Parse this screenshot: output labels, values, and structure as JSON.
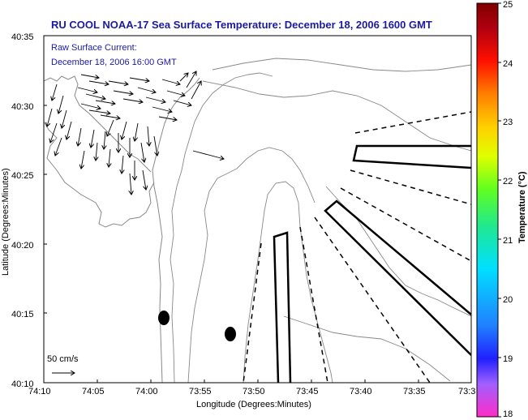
{
  "title": "RU COOL  NOAA-17  Sea Surface Temperature:  December 18, 2006 1600 GMT",
  "annotation": {
    "line1": "Raw Surface Current:",
    "line2": "December 18, 2006 16:00 GMT"
  },
  "scale_label": "50 cm/s",
  "x_axis": {
    "label": "Longitude (Degrees:Minutes)",
    "ticks": [
      "74:10",
      "74:05",
      "74:00",
      "73:55",
      "73:50",
      "73:45",
      "73:40",
      "73:35",
      "73:3"
    ]
  },
  "y_axis": {
    "label": "Latitude (Degrees:Minutes)",
    "ticks": [
      "40:35",
      "40:30",
      "40:25",
      "40:20",
      "40:15",
      "40:10"
    ]
  },
  "colorbar": {
    "label": "Temperature (°C)",
    "ticks": [
      "25",
      "24",
      "23",
      "22",
      "21",
      "20",
      "19",
      "18"
    ],
    "colors": [
      "#ff2cc8",
      "#a060ff",
      "#2020ff",
      "#2080ff",
      "#00e0ff",
      "#20e890",
      "#60ff20",
      "#e0ff00",
      "#ffd000",
      "#ff8000",
      "#ff1000",
      "#b00010",
      "#800000"
    ]
  }
}
